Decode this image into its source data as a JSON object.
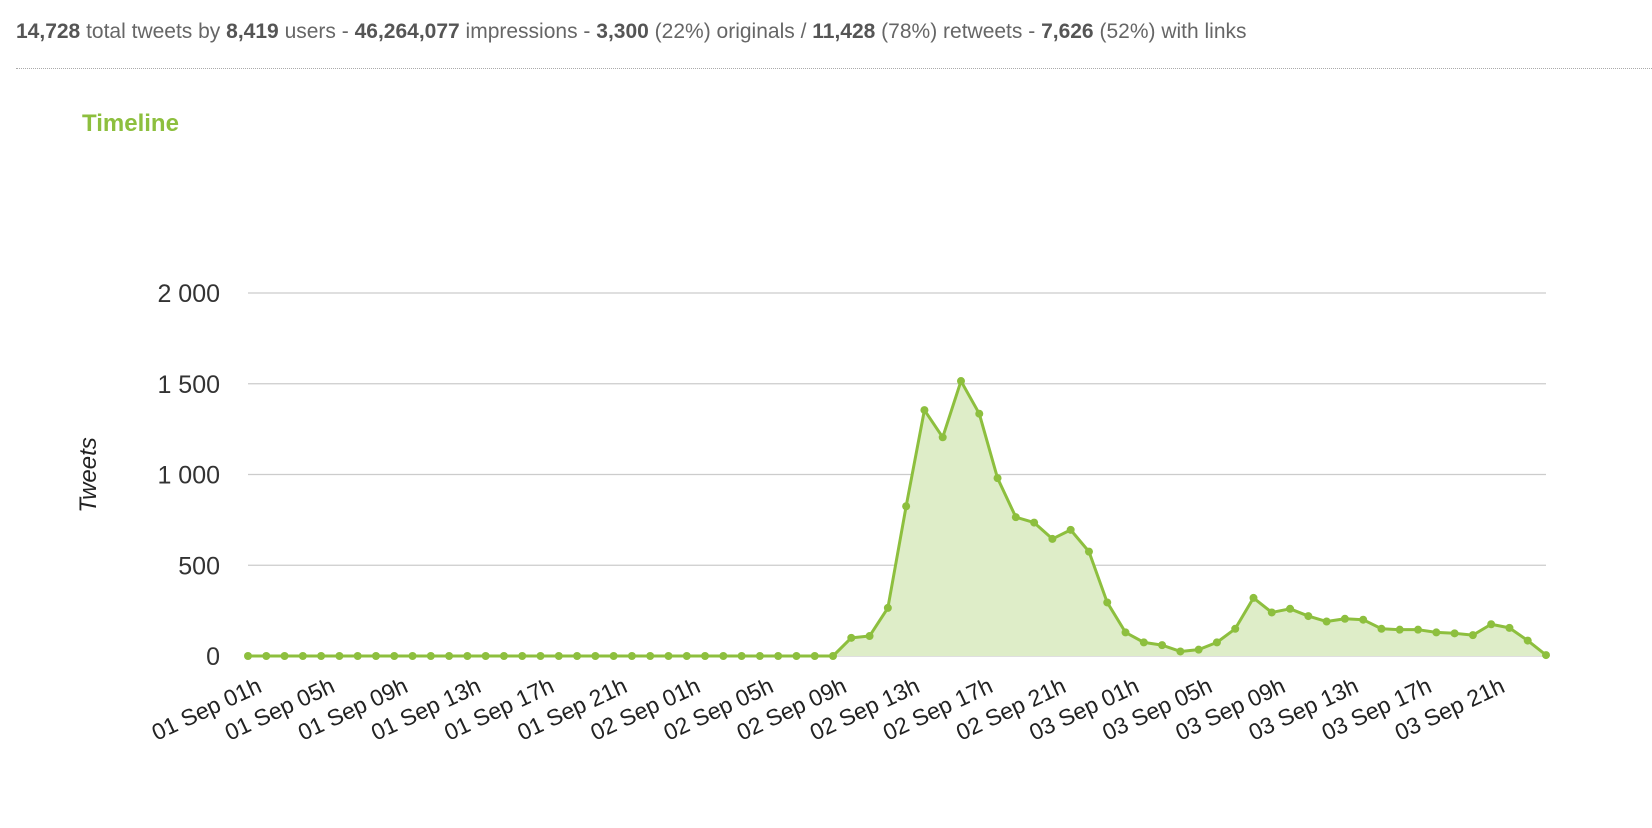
{
  "stats": {
    "total_tweets": "14,728",
    "total_tweets_label": "total tweets by",
    "users": "8,419",
    "users_label": "users -",
    "impressions": "46,264,077",
    "impressions_label": "impressions -",
    "originals": "3,300",
    "originals_pct": "(22%) originals /",
    "retweets": "11,428",
    "retweets_pct": "(78%) retweets -",
    "links": "7,626",
    "links_pct": "(52%) with links"
  },
  "colors": {
    "line": "#8dbf3e",
    "area": "#deedc8",
    "grid": "#cccccc",
    "title": "#8dbf3e"
  },
  "chart_data": {
    "type": "area",
    "title": "Timeline",
    "xlabel": "",
    "ylabel": "Tweets",
    "ylim": [
      0,
      2000
    ],
    "yticks": [
      0,
      500,
      1000,
      1500,
      2000
    ],
    "ytick_labels": [
      "0",
      "500",
      "1 000",
      "1 500",
      "2 000"
    ],
    "grid": true,
    "x": [
      "01 Sep 01h",
      "01 Sep 02h",
      "01 Sep 03h",
      "01 Sep 04h",
      "01 Sep 05h",
      "01 Sep 06h",
      "01 Sep 07h",
      "01 Sep 08h",
      "01 Sep 09h",
      "01 Sep 10h",
      "01 Sep 11h",
      "01 Sep 12h",
      "01 Sep 13h",
      "01 Sep 14h",
      "01 Sep 15h",
      "01 Sep 16h",
      "01 Sep 17h",
      "01 Sep 18h",
      "01 Sep 19h",
      "01 Sep 20h",
      "01 Sep 21h",
      "01 Sep 22h",
      "01 Sep 23h",
      "02 Sep 00h",
      "02 Sep 01h",
      "02 Sep 02h",
      "02 Sep 03h",
      "02 Sep 04h",
      "02 Sep 05h",
      "02 Sep 06h",
      "02 Sep 07h",
      "02 Sep 08h",
      "02 Sep 09h",
      "02 Sep 10h",
      "02 Sep 11h",
      "02 Sep 12h",
      "02 Sep 13h",
      "02 Sep 14h",
      "02 Sep 15h",
      "02 Sep 16h",
      "02 Sep 17h",
      "02 Sep 18h",
      "02 Sep 19h",
      "02 Sep 20h",
      "02 Sep 21h",
      "02 Sep 22h",
      "02 Sep 23h",
      "03 Sep 00h",
      "03 Sep 01h",
      "03 Sep 02h",
      "03 Sep 03h",
      "03 Sep 04h",
      "03 Sep 05h",
      "03 Sep 06h",
      "03 Sep 07h",
      "03 Sep 08h",
      "03 Sep 09h",
      "03 Sep 10h",
      "03 Sep 11h",
      "03 Sep 12h",
      "03 Sep 13h",
      "03 Sep 14h",
      "03 Sep 15h",
      "03 Sep 16h",
      "03 Sep 17h",
      "03 Sep 18h",
      "03 Sep 19h",
      "03 Sep 20h",
      "03 Sep 21h",
      "03 Sep 22h",
      "03 Sep 23h",
      "04 Sep 00h"
    ],
    "x_tick_labels": [
      "01 Sep 01h",
      "01 Sep 05h",
      "01 Sep 09h",
      "01 Sep 13h",
      "01 Sep 17h",
      "01 Sep 21h",
      "02 Sep 01h",
      "02 Sep 05h",
      "02 Sep 09h",
      "02 Sep 13h",
      "02 Sep 17h",
      "02 Sep 21h",
      "03 Sep 01h",
      "03 Sep 05h",
      "03 Sep 09h",
      "03 Sep 13h",
      "03 Sep 17h",
      "03 Sep 21h"
    ],
    "series": [
      {
        "values": [
          0,
          0,
          0,
          0,
          0,
          0,
          0,
          0,
          0,
          0,
          0,
          0,
          0,
          0,
          0,
          0,
          0,
          0,
          0,
          0,
          0,
          0,
          0,
          0,
          0,
          0,
          0,
          0,
          0,
          0,
          0,
          0,
          0,
          100,
          110,
          265,
          825,
          1355,
          1205,
          1515,
          1335,
          980,
          765,
          735,
          645,
          695,
          575,
          295,
          130,
          75,
          60,
          25,
          35,
          75,
          150,
          320,
          240,
          260,
          220,
          190,
          205,
          200,
          150,
          145,
          145,
          130,
          125,
          115,
          175,
          155,
          85,
          5
        ]
      }
    ]
  }
}
